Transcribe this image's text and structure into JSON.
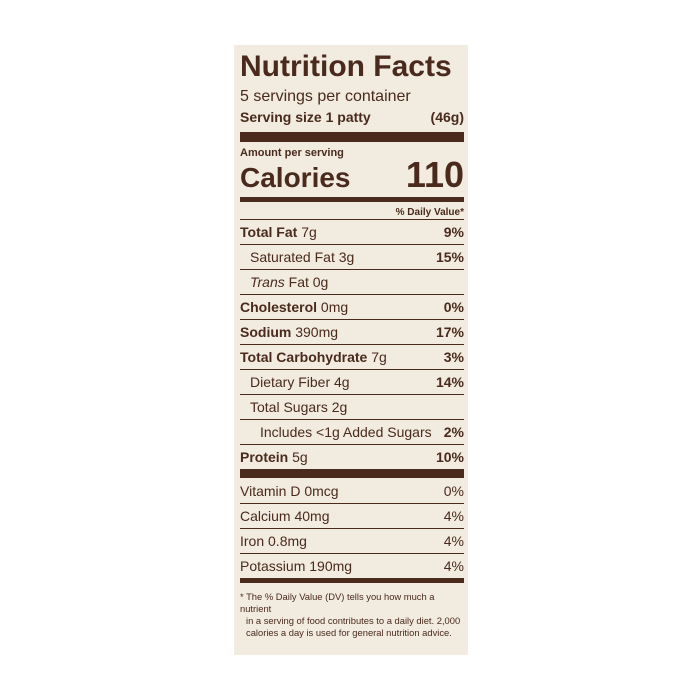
{
  "label": {
    "title": "Nutrition Facts",
    "servings_per_container": "5 servings per container",
    "serving_size_label": "Serving size 1 patty",
    "serving_size_value": "(46g)",
    "amount_per_serving": "Amount per serving",
    "calories_label": "Calories",
    "calories_value": "110",
    "daily_value_header": "% Daily Value*"
  },
  "nutrients": {
    "total_fat": {
      "name": "Total Fat",
      "amount": "7g",
      "dv": "9%"
    },
    "saturated_fat": {
      "name": "Saturated Fat 3g",
      "dv": "15%"
    },
    "trans_fat": {
      "name_italic": "Trans",
      "name_rest": "Fat 0g"
    },
    "cholesterol": {
      "name": "Cholesterol",
      "amount": "0mg",
      "dv": "0%"
    },
    "sodium": {
      "name": "Sodium",
      "amount": "390mg",
      "dv": "17%"
    },
    "total_carbohydrate": {
      "name": "Total Carbohydrate",
      "amount": "7g",
      "dv": "3%"
    },
    "dietary_fiber": {
      "name": "Dietary Fiber 4g",
      "dv": "14%"
    },
    "total_sugars": {
      "name": "Total Sugars 2g"
    },
    "added_sugars": {
      "name": "Includes <1g Added Sugars",
      "dv": "2%"
    },
    "protein": {
      "name": "Protein",
      "amount": "5g",
      "dv": "10%"
    }
  },
  "vitamins": {
    "vitamin_d": {
      "name": "Vitamin D 0mcg",
      "dv": "0%"
    },
    "calcium": {
      "name": "Calcium 40mg",
      "dv": "4%"
    },
    "iron": {
      "name": "Iron 0.8mg",
      "dv": "4%"
    },
    "potassium": {
      "name": "Potassium 190mg",
      "dv": "4%"
    }
  },
  "footnote": {
    "line1": "* The % Daily Value (DV) tells you how much a nutrient",
    "line2": "in a serving of food contributes to a daily diet. 2,000",
    "line3": "calories a day is used for general nutrition advice."
  },
  "colors": {
    "ink": "#4a2a1c",
    "panel_background": "#f1ebe0",
    "page_background": "#ffffff"
  }
}
